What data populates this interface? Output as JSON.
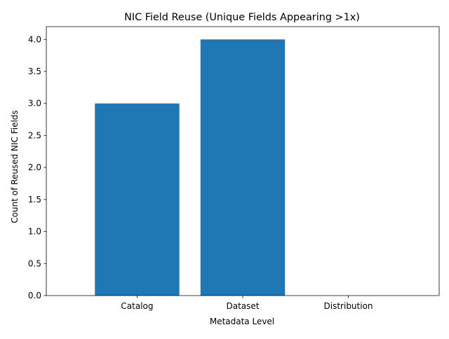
{
  "chart_data": {
    "type": "bar",
    "title": "NIC Field Reuse (Unique Fields Appearing >1x)",
    "xlabel": "Metadata Level",
    "ylabel": "Count of Reused NIC Fields",
    "categories": [
      "Catalog",
      "Dataset",
      "Distribution"
    ],
    "values": [
      3,
      4,
      0
    ],
    "ylim": [
      0,
      4.2
    ],
    "yticks": [
      0.0,
      0.5,
      1.0,
      1.5,
      2.0,
      2.5,
      3.0,
      3.5,
      4.0
    ],
    "bar_color": "#1f77b4",
    "grid": false,
    "legend": "none"
  }
}
